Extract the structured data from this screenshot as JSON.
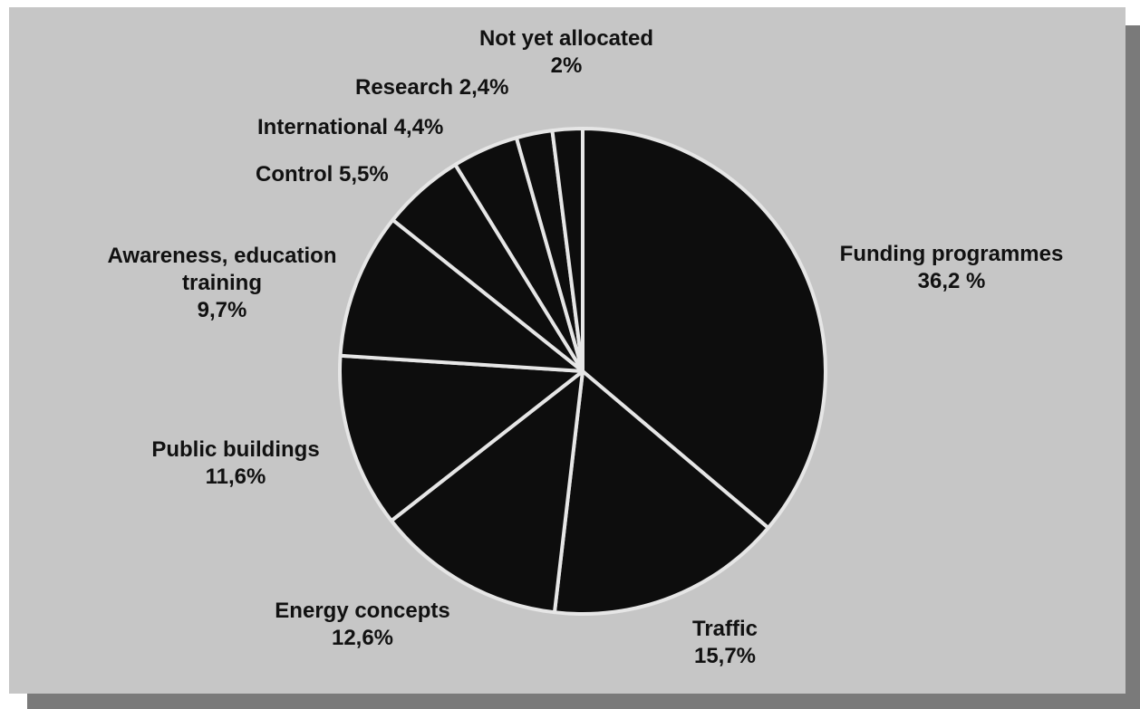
{
  "colors": {
    "background": "#c6c6c6",
    "slice_fill": "#0d0d0d",
    "slice_border": "#e6e6e6",
    "shadow": "#7a7a7a",
    "text": "#111111"
  },
  "chart_data": {
    "type": "pie",
    "slices": [
      {
        "label": "Funding programmes",
        "value_text": "36,2 %",
        "value": 36.2
      },
      {
        "label": "Traffic",
        "value_text": "15,7%",
        "value": 15.7
      },
      {
        "label": "Energy concepts",
        "value_text": "12,6%",
        "value": 12.6
      },
      {
        "label": "Public buildings",
        "value_text": "11,6%",
        "value": 11.6
      },
      {
        "label": "Awareness, education training",
        "value_text": "9,7%",
        "value": 9.7
      },
      {
        "label": "Control",
        "value_text": "5,5%",
        "value": 5.5
      },
      {
        "label": "International",
        "value_text": "4,4%",
        "value": 4.4
      },
      {
        "label": "Research",
        "value_text": "2,4%",
        "value": 2.4
      },
      {
        "label": "Not yet allocated",
        "value_text": "2%",
        "value": 2.0
      }
    ]
  }
}
